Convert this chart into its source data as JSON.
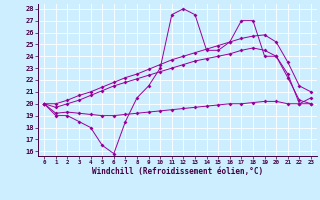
{
  "bg_color": "#cceeff",
  "line_color": "#990099",
  "grid_color": "#aaddcc",
  "xlim": [
    -0.5,
    23.5
  ],
  "ylim": [
    15.6,
    28.4
  ],
  "yticks": [
    16,
    17,
    18,
    19,
    20,
    21,
    22,
    23,
    24,
    25,
    26,
    27,
    28
  ],
  "xticks": [
    0,
    1,
    2,
    3,
    4,
    5,
    6,
    7,
    8,
    9,
    10,
    11,
    12,
    13,
    14,
    15,
    16,
    17,
    18,
    19,
    20,
    21,
    22,
    23
  ],
  "xlabel": "Windchill (Refroidissement éolien,°C)",
  "series": [
    {
      "x": [
        0,
        1,
        2,
        3,
        4,
        5,
        6,
        7,
        8,
        9,
        10,
        11,
        12,
        13,
        14,
        15,
        16,
        17,
        18,
        19,
        20,
        21,
        22,
        23
      ],
      "y": [
        20,
        19,
        19,
        18.5,
        18,
        16.5,
        15.8,
        18.5,
        20.5,
        21.5,
        23.0,
        27.5,
        28.0,
        27.5,
        24.5,
        24.5,
        25.2,
        27.0,
        27.0,
        24.0,
        24.0,
        22.5,
        20.0,
        20.5
      ]
    },
    {
      "x": [
        0,
        1,
        2,
        3,
        4,
        5,
        6,
        7,
        8,
        9,
        10,
        11,
        12,
        13,
        14,
        15,
        16,
        17,
        18,
        19,
        20,
        21,
        22,
        23
      ],
      "y": [
        20.0,
        19.2,
        19.3,
        19.2,
        19.1,
        19.0,
        19.0,
        19.1,
        19.2,
        19.3,
        19.4,
        19.5,
        19.6,
        19.7,
        19.8,
        19.9,
        20.0,
        20.0,
        20.1,
        20.2,
        20.2,
        20.0,
        20.0,
        20.0
      ]
    },
    {
      "x": [
        0,
        1,
        2,
        3,
        4,
        5,
        6,
        7,
        8,
        9,
        10,
        11,
        12,
        13,
        14,
        15,
        16,
        17,
        18,
        19,
        20,
        21,
        22,
        23
      ],
      "y": [
        20.0,
        19.7,
        20.0,
        20.3,
        20.7,
        21.1,
        21.5,
        21.8,
        22.1,
        22.4,
        22.7,
        23.0,
        23.3,
        23.6,
        23.8,
        24.0,
        24.2,
        24.5,
        24.7,
        24.5,
        24.0,
        22.2,
        20.3,
        20.0
      ]
    },
    {
      "x": [
        0,
        1,
        2,
        3,
        4,
        5,
        6,
        7,
        8,
        9,
        10,
        11,
        12,
        13,
        14,
        15,
        16,
        17,
        18,
        19,
        20,
        21,
        22,
        23
      ],
      "y": [
        20.0,
        20.0,
        20.3,
        20.7,
        21.0,
        21.4,
        21.8,
        22.2,
        22.5,
        22.9,
        23.3,
        23.7,
        24.0,
        24.3,
        24.6,
        24.9,
        25.2,
        25.5,
        25.7,
        25.8,
        25.2,
        23.5,
        21.5,
        21.0
      ]
    }
  ]
}
